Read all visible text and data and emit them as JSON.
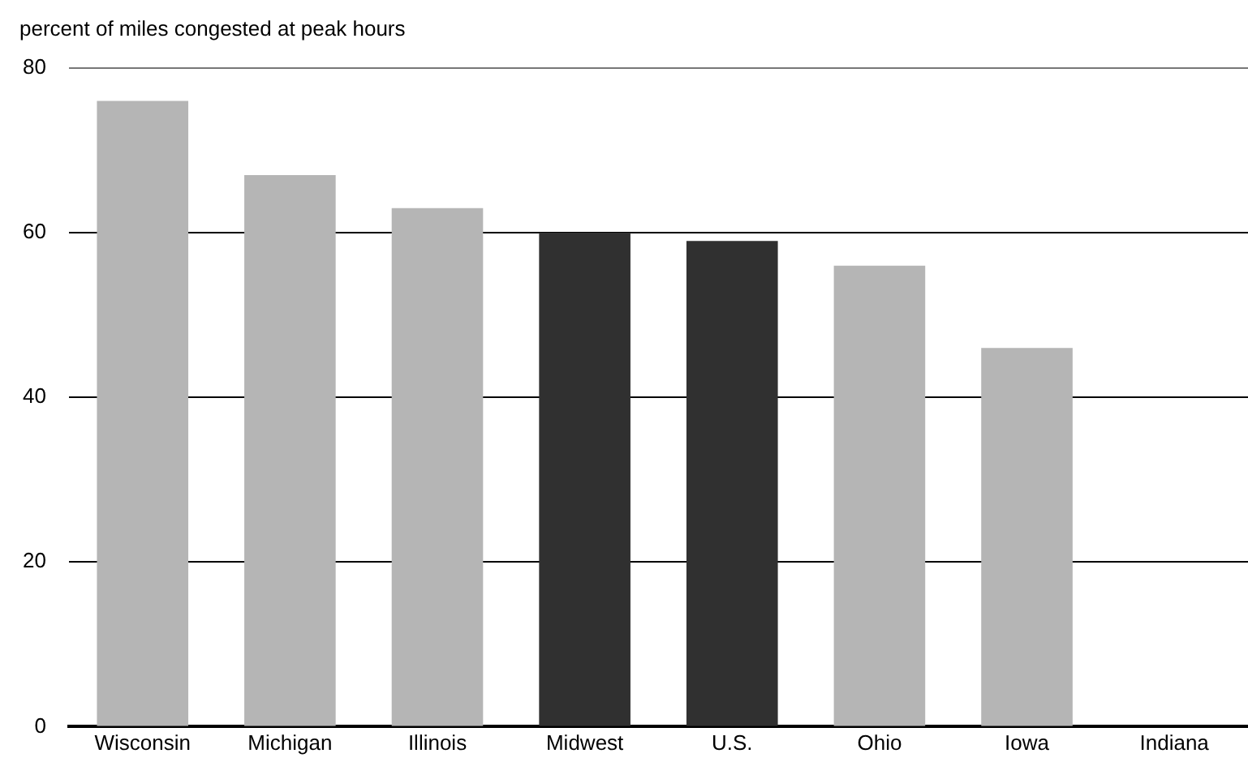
{
  "chart_data": {
    "type": "bar",
    "ylabel": "percent of miles congested at peak hours",
    "categories": [
      "Wisconsin",
      "Michigan",
      "Illinois",
      "Midwest",
      "U.S.",
      "Ohio",
      "Iowa",
      "Indiana"
    ],
    "values": [
      76,
      67,
      63,
      60,
      59,
      56,
      46,
      null
    ],
    "colors": [
      "#b5b5b5",
      "#b5b5b5",
      "#b5b5b5",
      "#303030",
      "#303030",
      "#b5b5b5",
      "#b5b5b5",
      "#b5b5b5"
    ],
    "ylim": [
      0,
      80
    ],
    "yticks": [
      0,
      20,
      40,
      60,
      80
    ],
    "grid": "y",
    "legend": false
  }
}
